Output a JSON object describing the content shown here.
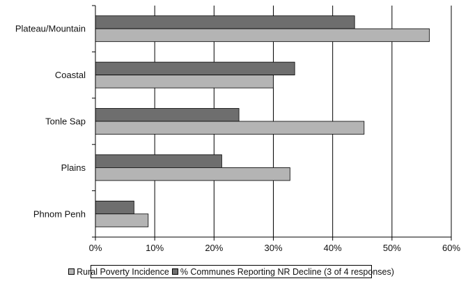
{
  "chart_data": {
    "type": "bar",
    "orientation": "horizontal",
    "categories": [
      "Plateau/Mountain",
      "Coastal",
      "Tonle Sap",
      "Plains",
      "Phnom Penh"
    ],
    "series": [
      {
        "name": "% Communes Reporting NR Decline (3 of 4 responses)",
        "values": [
          43.7,
          33.6,
          24.2,
          21.3,
          6.5
        ],
        "color": "#6e6e6e"
      },
      {
        "name": "Rural Poverty Incidence",
        "values": [
          56.3,
          30.0,
          45.3,
          32.8,
          8.9
        ],
        "color": "#b4b4b4"
      }
    ],
    "xlim": [
      0,
      60
    ],
    "xticks": [
      "0%",
      "10%",
      "20%",
      "30%",
      "40%",
      "50%",
      "60%"
    ],
    "grid": "vertical",
    "legend_position": "bottom",
    "legend": [
      {
        "label": "Rural Poverty Incidence",
        "color": "#b4b4b4"
      },
      {
        "label": "% Communes Reporting NR Decline (3 of 4 responses)",
        "color": "#6e6e6e"
      }
    ]
  }
}
